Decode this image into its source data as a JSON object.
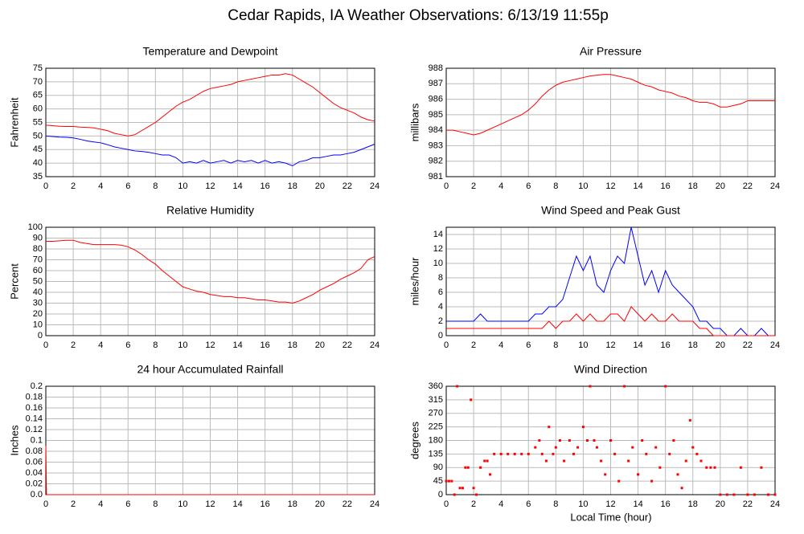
{
  "title": "Cedar Rapids, IA Weather Observations: 6/13/19 11:55p",
  "x_label": "Local Time (hour)",
  "chart_data": [
    {
      "type": "line",
      "title": "Temperature and Dewpoint",
      "y_label": "Fahrenheit",
      "xlim": [
        0,
        24
      ],
      "xticks": [
        0,
        2,
        4,
        6,
        8,
        10,
        12,
        14,
        16,
        18,
        20,
        22,
        24
      ],
      "ylim": [
        35,
        75
      ],
      "yticks": [
        35,
        40,
        45,
        50,
        55,
        60,
        65,
        70,
        75
      ],
      "grid": true,
      "x": [
        0,
        0.5,
        1,
        1.5,
        2,
        2.5,
        3,
        3.5,
        4,
        4.5,
        5,
        5.5,
        6,
        6.5,
        7,
        7.5,
        8,
        8.5,
        9,
        9.5,
        10,
        10.5,
        11,
        11.5,
        12,
        12.5,
        13,
        13.5,
        14,
        14.5,
        15,
        15.5,
        16,
        16.5,
        17,
        17.5,
        18,
        18.5,
        19,
        19.5,
        20,
        20.5,
        21,
        21.5,
        22,
        22.5,
        23,
        23.5,
        24
      ],
      "series": [
        {
          "name": "Temperature",
          "color": "#ff0000",
          "values": [
            54,
            53.8,
            53.6,
            53.5,
            53.5,
            53.3,
            53.2,
            53,
            52.5,
            52,
            51,
            50.5,
            50,
            50.5,
            52,
            53.5,
            55,
            57,
            59,
            61,
            62.5,
            63.5,
            65,
            66.5,
            67.5,
            68,
            68.5,
            69,
            70,
            70.5,
            71,
            71.5,
            72,
            72.5,
            72.5,
            73,
            72.5,
            71,
            69.5,
            68,
            66,
            64,
            62,
            60.5,
            59.5,
            58.5,
            57,
            56,
            55.5
          ]
        },
        {
          "name": "Dewpoint",
          "color": "#0000ff",
          "values": [
            50,
            49.8,
            49.6,
            49.5,
            49.3,
            48.8,
            48.2,
            47.8,
            47.5,
            46.8,
            46,
            45.5,
            45,
            44.5,
            44.3,
            44,
            43.5,
            43,
            43,
            42,
            40,
            40.5,
            40,
            41,
            40,
            40.5,
            41,
            40,
            41,
            40.5,
            41,
            40,
            41,
            40,
            40.5,
            40,
            39,
            40.5,
            41,
            42,
            42,
            42.5,
            43,
            43,
            43.5,
            44,
            45,
            46,
            47
          ]
        }
      ]
    },
    {
      "type": "line",
      "title": "Air Pressure",
      "y_label": "millibars",
      "xlim": [
        0,
        24
      ],
      "xticks": [
        0,
        2,
        4,
        6,
        8,
        10,
        12,
        14,
        16,
        18,
        20,
        22,
        24
      ],
      "ylim": [
        981,
        988
      ],
      "yticks": [
        981,
        982,
        983,
        984,
        985,
        986,
        987,
        988
      ],
      "grid": true,
      "x": [
        0,
        0.5,
        1,
        1.5,
        2,
        2.5,
        3,
        3.5,
        4,
        4.5,
        5,
        5.5,
        6,
        6.5,
        7,
        7.5,
        8,
        8.5,
        9,
        9.5,
        10,
        10.5,
        11,
        11.5,
        12,
        12.5,
        13,
        13.5,
        14,
        14.5,
        15,
        15.5,
        16,
        16.5,
        17,
        17.5,
        18,
        18.5,
        19,
        19.5,
        20,
        20.5,
        21,
        21.5,
        22,
        22.5,
        23,
        23.5,
        24
      ],
      "series": [
        {
          "name": "Pressure",
          "color": "#ff0000",
          "values": [
            984,
            984,
            983.9,
            983.8,
            983.7,
            983.8,
            984,
            984.2,
            984.4,
            984.6,
            984.8,
            985,
            985.3,
            985.7,
            986.2,
            986.6,
            986.9,
            987.1,
            987.2,
            987.3,
            987.4,
            987.5,
            987.55,
            987.6,
            987.6,
            987.5,
            987.4,
            987.3,
            987.1,
            986.9,
            986.8,
            986.6,
            986.5,
            986.4,
            986.2,
            986.1,
            985.9,
            985.8,
            985.8,
            985.7,
            985.5,
            985.5,
            985.6,
            985.7,
            985.9,
            985.9,
            985.9,
            985.9,
            985.9
          ]
        }
      ]
    },
    {
      "type": "line",
      "title": "Relative Humidity",
      "y_label": "Percent",
      "xlim": [
        0,
        24
      ],
      "xticks": [
        0,
        2,
        4,
        6,
        8,
        10,
        12,
        14,
        16,
        18,
        20,
        22,
        24
      ],
      "ylim": [
        0,
        100
      ],
      "yticks": [
        0,
        10,
        20,
        30,
        40,
        50,
        60,
        70,
        80,
        90,
        100
      ],
      "grid": true,
      "x": [
        0,
        0.5,
        1,
        1.5,
        2,
        2.5,
        3,
        3.5,
        4,
        4.5,
        5,
        5.5,
        6,
        6.5,
        7,
        7.5,
        8,
        8.5,
        9,
        9.5,
        10,
        10.5,
        11,
        11.5,
        12,
        12.5,
        13,
        13.5,
        14,
        14.5,
        15,
        15.5,
        16,
        16.5,
        17,
        17.5,
        18,
        18.5,
        19,
        19.5,
        20,
        20.5,
        21,
        21.5,
        22,
        22.5,
        23,
        23.5,
        24
      ],
      "series": [
        {
          "name": "Relative Humidity",
          "color": "#ff0000",
          "values": [
            87,
            87,
            87.5,
            88,
            88,
            86,
            85,
            84,
            84,
            84,
            84,
            83.5,
            82,
            79,
            75,
            70,
            66,
            60,
            55,
            50,
            45,
            43,
            41,
            40,
            38,
            37,
            36,
            36,
            35,
            35,
            34,
            33,
            33,
            32,
            31,
            31,
            30,
            32,
            35,
            38,
            42,
            45,
            48,
            52,
            55,
            58,
            62,
            70,
            73
          ]
        }
      ]
    },
    {
      "type": "line",
      "title": "Wind Speed and Peak Gust",
      "y_label": "miles/hour",
      "xlim": [
        0,
        24
      ],
      "xticks": [
        0,
        2,
        4,
        6,
        8,
        10,
        12,
        14,
        16,
        18,
        20,
        22,
        24
      ],
      "ylim": [
        0,
        15
      ],
      "yticks": [
        0,
        2,
        4,
        6,
        8,
        10,
        12,
        14
      ],
      "grid": true,
      "x": [
        0,
        0.5,
        1,
        1.5,
        2,
        2.5,
        3,
        3.5,
        4,
        4.5,
        5,
        5.5,
        6,
        6.5,
        7,
        7.5,
        8,
        8.5,
        9,
        9.5,
        10,
        10.5,
        11,
        11.5,
        12,
        12.5,
        13,
        13.5,
        14,
        14.5,
        15,
        15.5,
        16,
        16.5,
        17,
        17.5,
        18,
        18.5,
        19,
        19.5,
        20,
        20.5,
        21,
        21.5,
        22,
        22.5,
        23,
        23.5,
        24
      ],
      "series": [
        {
          "name": "Peak Gust",
          "color": "#0000ff",
          "values": [
            2,
            2,
            2,
            2,
            2,
            3,
            2,
            2,
            2,
            2,
            2,
            2,
            2,
            3,
            3,
            4,
            4,
            5,
            8,
            11,
            9,
            11,
            7,
            6,
            9,
            11,
            10,
            15,
            11,
            7,
            9,
            6,
            9,
            7,
            6,
            5,
            4,
            2,
            2,
            1,
            1,
            0,
            0,
            1,
            0,
            0,
            1,
            0,
            0
          ]
        },
        {
          "name": "Wind Speed",
          "color": "#ff0000",
          "values": [
            1,
            1,
            1,
            1,
            1,
            1,
            1,
            1,
            1,
            1,
            1,
            1,
            1,
            1,
            1,
            2,
            1,
            2,
            2,
            3,
            2,
            3,
            2,
            2,
            3,
            3,
            2,
            4,
            3,
            2,
            3,
            2,
            2,
            3,
            2,
            2,
            2,
            1,
            1,
            0,
            0,
            0,
            0,
            0,
            0,
            0,
            0,
            0,
            0
          ]
        }
      ]
    },
    {
      "type": "line",
      "title": "24 hour Accumulated Rainfall",
      "y_label": "Inches",
      "xlim": [
        0,
        24
      ],
      "xticks": [
        0,
        2,
        4,
        6,
        8,
        10,
        12,
        14,
        16,
        18,
        20,
        22,
        24
      ],
      "ylim": [
        0,
        0.2
      ],
      "yticks": [
        {
          "value": 0,
          "label": "0.0"
        },
        0.02,
        0.04,
        0.06,
        0.08,
        0.1,
        0.12,
        0.14,
        0.16,
        0.18,
        0.2
      ],
      "grid": true,
      "x": [
        0,
        0.05,
        24
      ],
      "series": [
        {
          "name": "Rainfall",
          "color": "#ff0000",
          "values": [
            0.09,
            0,
            0
          ]
        }
      ]
    },
    {
      "type": "scatter",
      "title": "Wind Direction",
      "y_label": "degrees",
      "xlim": [
        0,
        24
      ],
      "xticks": [
        0,
        2,
        4,
        6,
        8,
        10,
        12,
        14,
        16,
        18,
        20,
        22,
        24
      ],
      "ylim": [
        0,
        360
      ],
      "yticks": [
        0,
        45,
        90,
        135,
        180,
        225,
        270,
        315,
        360
      ],
      "grid": true,
      "x": [
        0,
        0.2,
        0.4,
        0.6,
        0.8,
        1,
        1.2,
        1.4,
        1.6,
        1.8,
        2,
        2.2,
        2.5,
        2.8,
        3,
        3.2,
        3.5,
        4,
        4.5,
        5,
        5.5,
        6,
        6.5,
        6.8,
        7,
        7.3,
        7.5,
        7.8,
        8,
        8.3,
        8.6,
        9,
        9.3,
        9.6,
        10,
        10.3,
        10.5,
        10.8,
        11,
        11.3,
        11.6,
        12,
        12.3,
        12.6,
        13,
        13.3,
        13.6,
        14,
        14.3,
        14.6,
        15,
        15.3,
        15.6,
        16,
        16.3,
        16.6,
        16.9,
        17.2,
        17.5,
        17.8,
        18,
        18.3,
        18.6,
        19,
        19.3,
        19.6,
        20,
        20.5,
        21,
        21.5,
        22,
        22.5,
        23,
        23.5,
        24
      ],
      "series": [
        {
          "name": "Wind Direction",
          "color": "#ff0000",
          "values": [
            45,
            45,
            45,
            0,
            360,
            22,
            22,
            90,
            90,
            315,
            22,
            0,
            90,
            112,
            112,
            67,
            135,
            135,
            135,
            135,
            135,
            135,
            157,
            180,
            135,
            112,
            225,
            135,
            157,
            180,
            112,
            180,
            135,
            157,
            225,
            180,
            360,
            180,
            157,
            112,
            67,
            180,
            135,
            45,
            360,
            112,
            157,
            67,
            180,
            135,
            45,
            157,
            90,
            360,
            135,
            180,
            67,
            22,
            112,
            247,
            157,
            135,
            112,
            90,
            90,
            90,
            0,
            0,
            0,
            90,
            0,
            0,
            90,
            0,
            0
          ]
        }
      ]
    }
  ]
}
